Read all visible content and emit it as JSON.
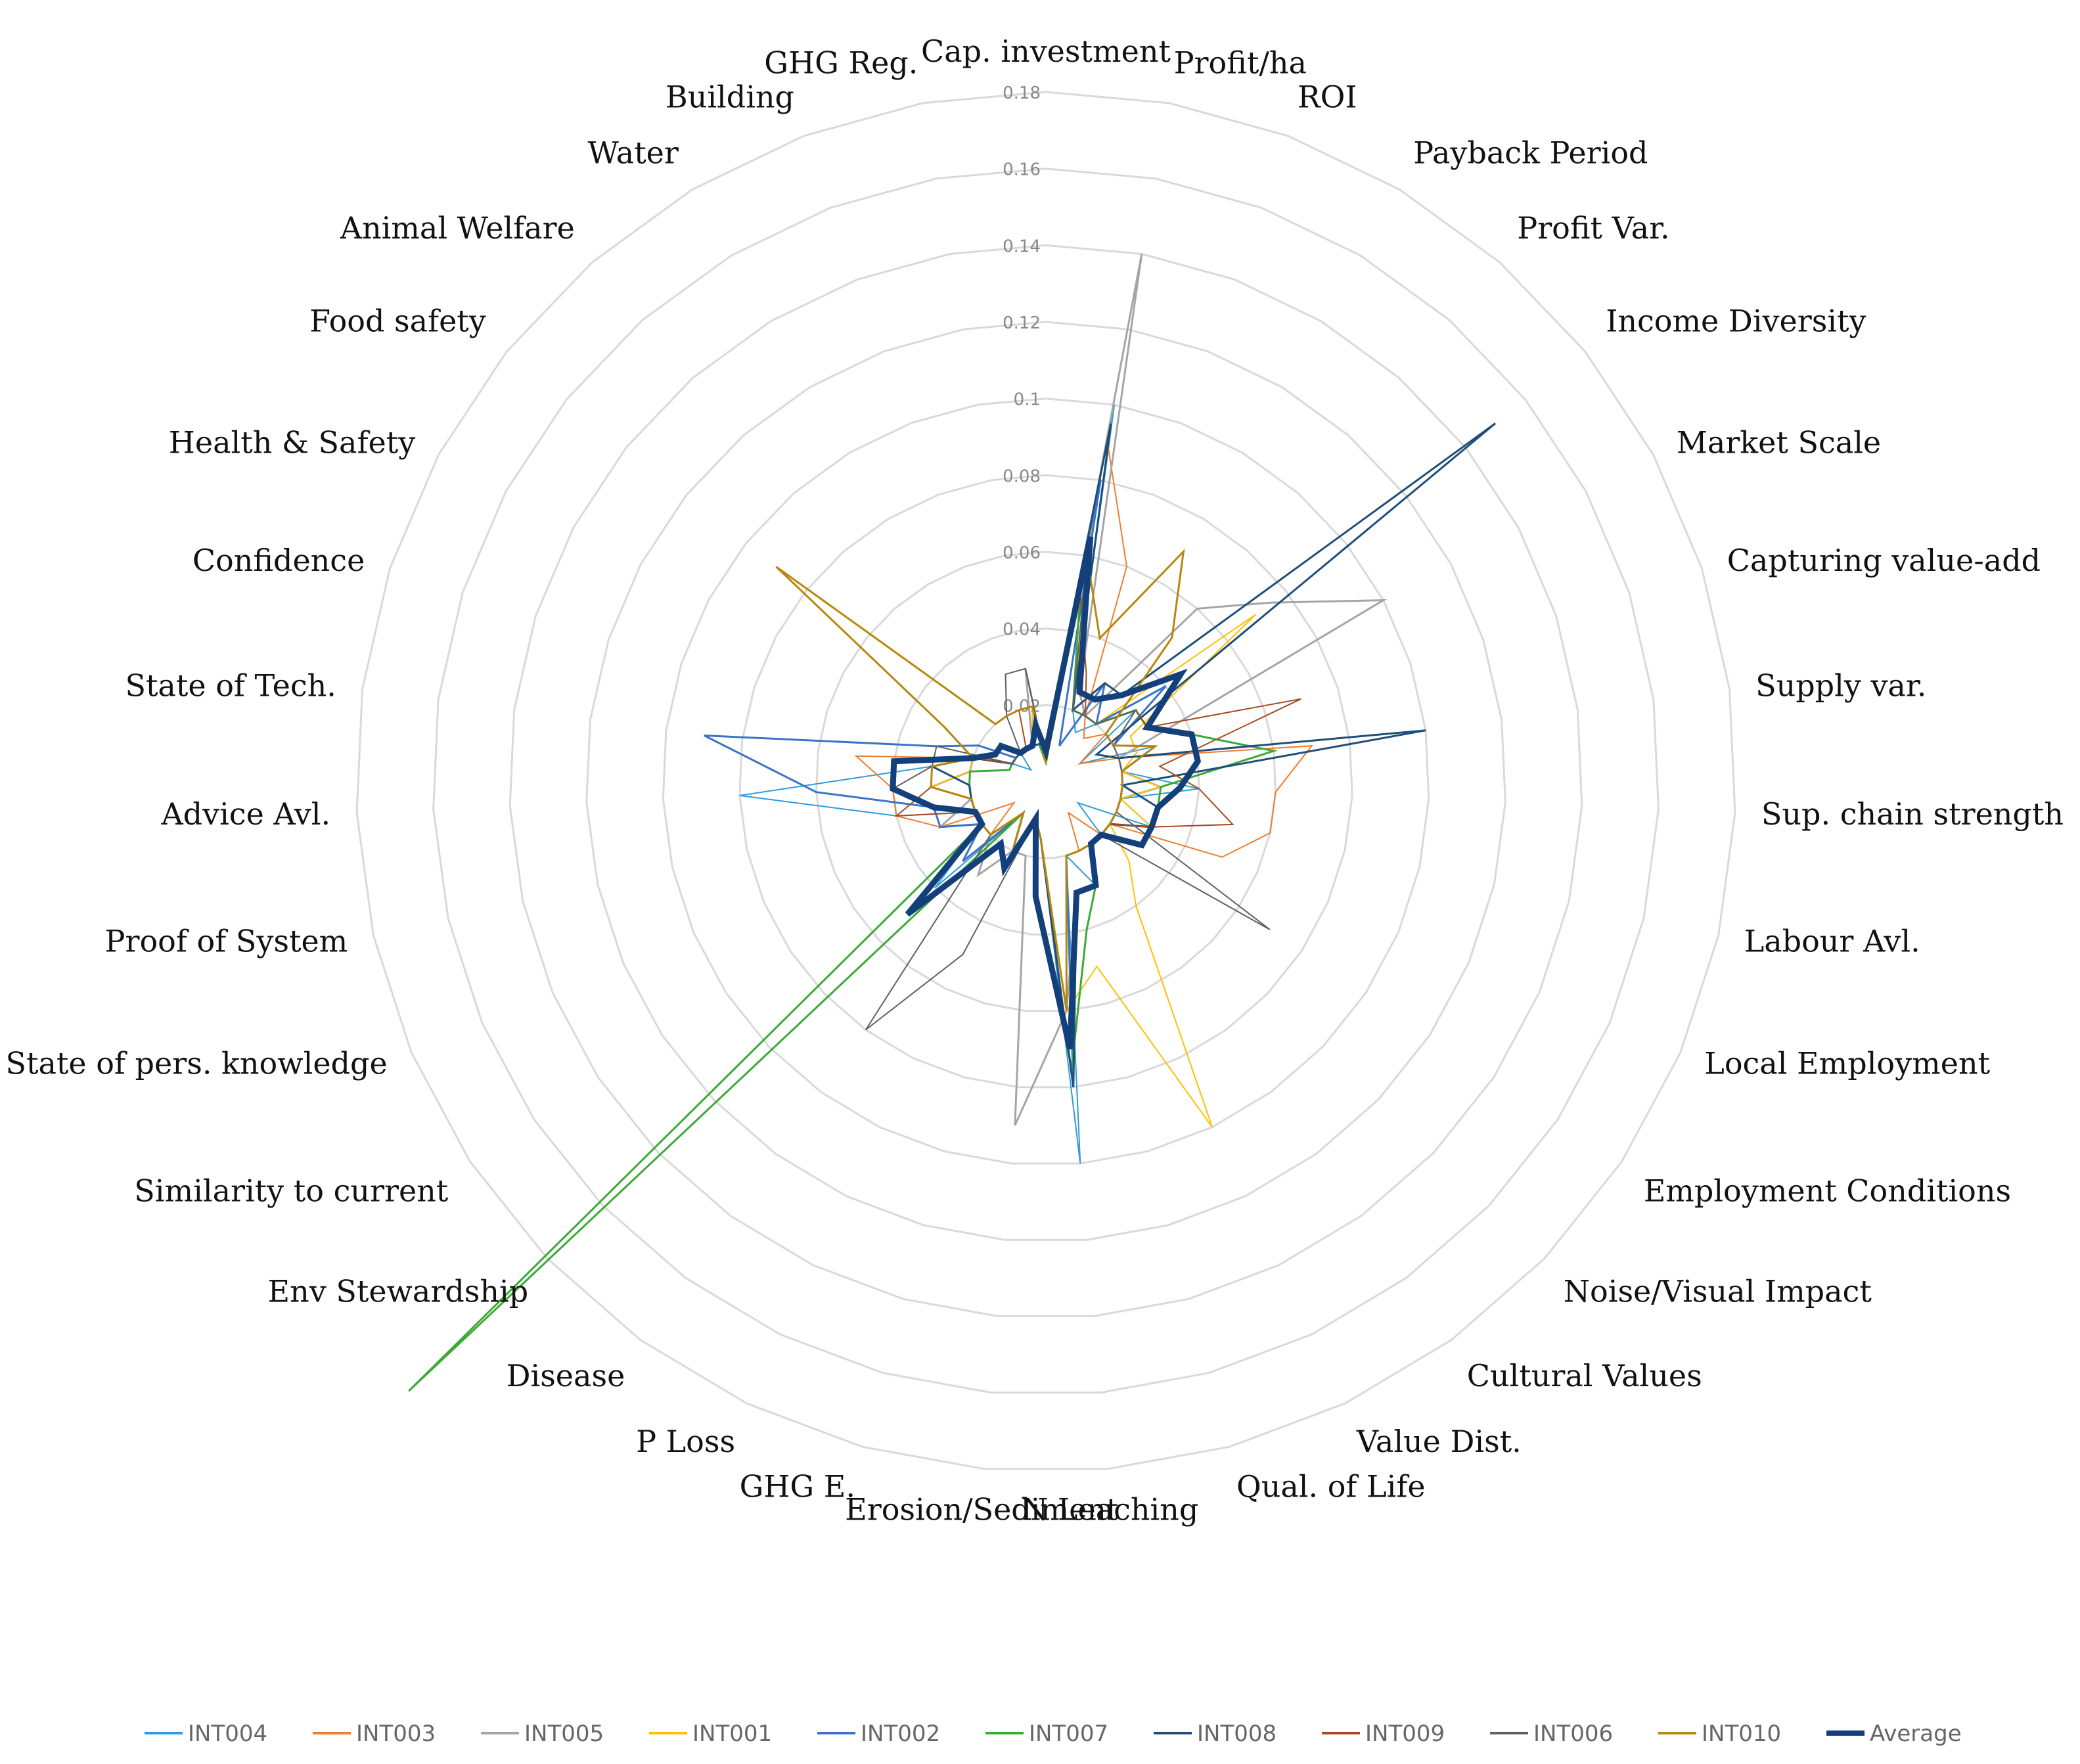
{
  "chart_data": {
    "type": "radar",
    "title": "",
    "rlim": [
      0,
      0.18
    ],
    "ticks": [
      0.02,
      0.04,
      0.06,
      0.08,
      0.1,
      0.12,
      0.14,
      0.16,
      0.18
    ],
    "tick_labels": [
      "0.02",
      "0.04",
      "0.06",
      "0.08",
      "0.1",
      "0.12",
      "0.14",
      "0.16",
      "0.18"
    ],
    "grid": true,
    "legend_position": "bottom",
    "categories": [
      "Cap. investment",
      "Profit/ha",
      "ROI",
      "Payback Period",
      "Profit Var.",
      "Income Diversity",
      "Market Scale",
      "Capturing value-add",
      "Supply var.",
      "Sup. chain strength",
      "Labour Avl.",
      "Local Employment",
      "Employment Conditions",
      "Noise/Visual Impact",
      "Cultural Values",
      "Value Dist.",
      "Qual. of Life",
      "N Leaching",
      "Erosion/Sediment",
      "GHG E.",
      "P Loss",
      "Disease",
      "Env Stewardship",
      "Similarity to current",
      "State of pers. knowledge",
      "Proof of System",
      "Advice Avl.",
      "State of Tech.",
      "Confidence",
      "Health & Safety",
      "Food safety",
      "Animal Welfare",
      "Water",
      "Building",
      "GHG Reg."
    ],
    "series": [
      {
        "name": "INT004",
        "color": "#2E9BDA",
        "width": 2,
        "values": [
          0.005,
          0.1,
          0.02,
          0.015,
          0.02,
          0.03,
          0.01,
          0.03,
          0.02,
          0.04,
          0.02,
          0.03,
          0.01,
          0.02,
          0.02,
          0.03,
          0.02,
          0.1,
          0.015,
          0.01,
          0.02,
          0.01,
          0.04,
          0.02,
          0.02,
          0.04,
          0.08,
          0.03,
          0.02,
          0.01,
          0.005,
          0.01,
          0.01,
          0.01,
          0.01
        ]
      },
      {
        "name": "INT003",
        "color": "#F07D2E",
        "width": 2,
        "values": [
          0.01,
          0.09,
          0.06,
          0.02,
          0.015,
          0.02,
          0.01,
          0.02,
          0.07,
          0.06,
          0.06,
          0.05,
          0.02,
          0.02,
          0.01,
          0.02,
          0.02,
          0.06,
          0.015,
          0.01,
          0.02,
          0.01,
          0.02,
          0.01,
          0.03,
          0.04,
          0.04,
          0.05,
          0.02,
          0.01,
          0.01,
          0.01,
          0.01,
          0.01,
          0.01
        ]
      },
      {
        "name": "INT005",
        "color": "#A5A5A5",
        "width": 3,
        "values": [
          0.005,
          0.14,
          0.025,
          0.02,
          0.06,
          0.075,
          0.1,
          0.02,
          0.02,
          0.03,
          0.02,
          0.02,
          0.02,
          0.02,
          0.02,
          0.03,
          0.03,
          0.06,
          0.09,
          0.02,
          0.02,
          0.03,
          0.02,
          0.02,
          0.03,
          0.02,
          0.03,
          0.02,
          0.02,
          0.01,
          0.01,
          0.01,
          0.01,
          0.01,
          0.03
        ]
      },
      {
        "name": "INT001",
        "color": "#FFC000",
        "width": 2,
        "values": [
          0.005,
          0.07,
          0.02,
          0.03,
          0.02,
          0.07,
          0.025,
          0.025,
          0.02,
          0.03,
          0.02,
          0.03,
          0.02,
          0.03,
          0.04,
          0.1,
          0.05,
          0.06,
          0.015,
          0.01,
          0.02,
          0.01,
          0.03,
          0.02,
          0.02,
          0.02,
          0.03,
          0.02,
          0.02,
          0.01,
          0.01,
          0.01,
          0.01,
          0.01,
          0.02
        ]
      },
      {
        "name": "INT002",
        "color": "#3B74C6",
        "width": 3,
        "values": [
          0.01,
          0.08,
          0.01,
          0.03,
          0.02,
          0.04,
          0.02,
          0.03,
          0.02,
          0.02,
          0.02,
          0.02,
          0.02,
          0.02,
          0.02,
          0.02,
          0.02,
          0.08,
          0.015,
          0.01,
          0.02,
          0.01,
          0.03,
          0.02,
          0.03,
          0.03,
          0.06,
          0.09,
          0.03,
          0.02,
          0.01,
          0.01,
          0.01,
          0.01,
          0.01
        ]
      },
      {
        "name": "INT007",
        "color": "#3BAA35",
        "width": 3,
        "values": [
          0.005,
          0.05,
          0.02,
          0.02,
          0.02,
          0.03,
          0.03,
          0.04,
          0.06,
          0.03,
          0.03,
          0.03,
          0.02,
          0.02,
          0.02,
          0.03,
          0.04,
          0.075,
          0.03,
          0.01,
          0.02,
          0.01,
          0.23,
          0.02,
          0.02,
          0.02,
          0.02,
          0.02,
          0.01,
          0.01,
          0.01,
          0.01,
          0.01,
          0.01,
          0.01
        ]
      },
      {
        "name": "INT008",
        "color": "#1F4E79",
        "width": 3,
        "values": [
          0.01,
          0.095,
          0.02,
          0.03,
          0.03,
          0.15,
          0.015,
          0.02,
          0.1,
          0.02,
          0.03,
          0.03,
          0.02,
          0.02,
          0.02,
          0.03,
          0.03,
          0.08,
          0.015,
          0.01,
          0.02,
          0.01,
          0.02,
          0.02,
          0.02,
          0.02,
          0.02,
          0.03,
          0.02,
          0.01,
          0.01,
          0.01,
          0.01,
          0.01,
          0.01
        ]
      },
      {
        "name": "INT009",
        "color": "#A54A1E",
        "width": 2,
        "values": [
          0.005,
          0.05,
          0.03,
          0.02,
          0.02,
          0.03,
          0.03,
          0.07,
          0.03,
          0.04,
          0.05,
          0.03,
          0.02,
          0.02,
          0.02,
          0.02,
          0.02,
          0.06,
          0.015,
          0.01,
          0.02,
          0.01,
          0.02,
          0.02,
          0.02,
          0.04,
          0.03,
          0.03,
          0.02,
          0.01,
          0.01,
          0.01,
          0.01,
          0.02,
          0.02
        ]
      },
      {
        "name": "INT006",
        "color": "#5F5F5F",
        "width": 2,
        "values": [
          0.005,
          0.06,
          0.02,
          0.02,
          0.02,
          0.03,
          0.02,
          0.02,
          0.02,
          0.02,
          0.02,
          0.02,
          0.07,
          0.02,
          0.02,
          0.02,
          0.02,
          0.06,
          0.015,
          0.01,
          0.05,
          0.08,
          0.02,
          0.02,
          0.02,
          0.03,
          0.04,
          0.03,
          0.03,
          0.01,
          0.01,
          0.01,
          0.02,
          0.03,
          0.03
        ]
      },
      {
        "name": "INT010",
        "color": "#B8860B",
        "width": 3,
        "values": [
          0.005,
          0.06,
          0.04,
          0.07,
          0.05,
          0.02,
          0.02,
          0.03,
          0.02,
          0.02,
          0.02,
          0.02,
          0.02,
          0.02,
          0.02,
          0.02,
          0.02,
          0.06,
          0.015,
          0.01,
          0.02,
          0.01,
          0.02,
          0.02,
          0.02,
          0.02,
          0.03,
          0.03,
          0.02,
          0.03,
          0.09,
          0.02,
          0.02,
          0.02,
          0.02
        ]
      },
      {
        "name": "Average",
        "color": "#133F7B",
        "width": 9,
        "values": [
          0.008,
          0.065,
          0.025,
          0.025,
          0.03,
          0.045,
          0.03,
          0.04,
          0.04,
          0.035,
          0.03,
          0.03,
          0.03,
          0.02,
          0.02,
          0.03,
          0.03,
          0.07,
          0.03,
          0.01,
          0.025,
          0.02,
          0.05,
          0.02,
          0.02,
          0.03,
          0.04,
          0.04,
          0.02,
          0.015,
          0.015,
          0.01,
          0.01,
          0.01,
          0.015
        ]
      }
    ]
  }
}
